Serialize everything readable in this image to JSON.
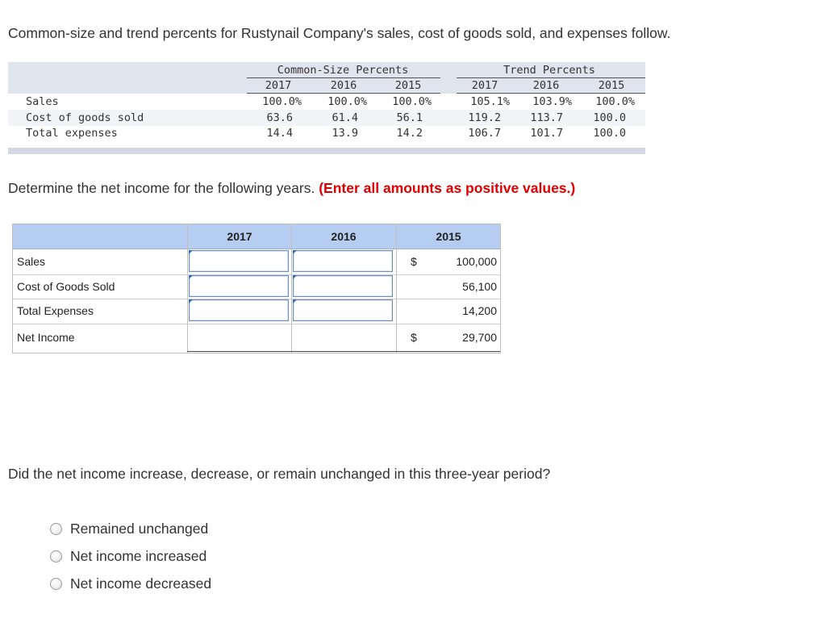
{
  "intro": "Common-size and trend percents for Rustynail Company's sales, cost of goods sold, and expenses follow.",
  "panel": {
    "common_size_title": "Common-Size Percents",
    "trend_title": "Trend Percents",
    "years": [
      "2017",
      "2016",
      "2015"
    ],
    "rows": [
      {
        "label": "Sales",
        "common": [
          "100.0%",
          "100.0%",
          "100.0%"
        ],
        "trend": [
          "105.1%",
          "103.9%",
          "100.0%"
        ]
      },
      {
        "label": "Cost of goods sold",
        "common": [
          "63.6",
          "61.4",
          "56.1"
        ],
        "trend": [
          "119.2",
          "113.7",
          "100.0"
        ]
      },
      {
        "label": "Total expenses",
        "common": [
          "14.4",
          "13.9",
          "14.2"
        ],
        "trend": [
          "106.7",
          "101.7",
          "100.0"
        ]
      }
    ]
  },
  "question": {
    "text": "Determine the net income for the following years.",
    "note": "(Enter all amounts as positive values.)"
  },
  "answer_table": {
    "years": [
      "2017",
      "2016",
      "2015"
    ],
    "rows": [
      {
        "label": "Sales",
        "value_2015": "100,000",
        "currency": "$"
      },
      {
        "label": "Cost of Goods Sold",
        "value_2015": "56,100",
        "currency": ""
      },
      {
        "label": "Total Expenses",
        "value_2015": "14,200",
        "currency": ""
      },
      {
        "label": "Net Income",
        "value_2015": "29,700",
        "currency": "$"
      }
    ]
  },
  "question2": "Did the net income increase, decrease, or remain unchanged in this three-year period?",
  "options": [
    "Remained unchanged",
    "Net income increased",
    "Net income decreased"
  ],
  "colors": {
    "header_blue": "#b4cdf0",
    "warning_red": "#e00000",
    "panel_gray": "#dfe4ee"
  }
}
